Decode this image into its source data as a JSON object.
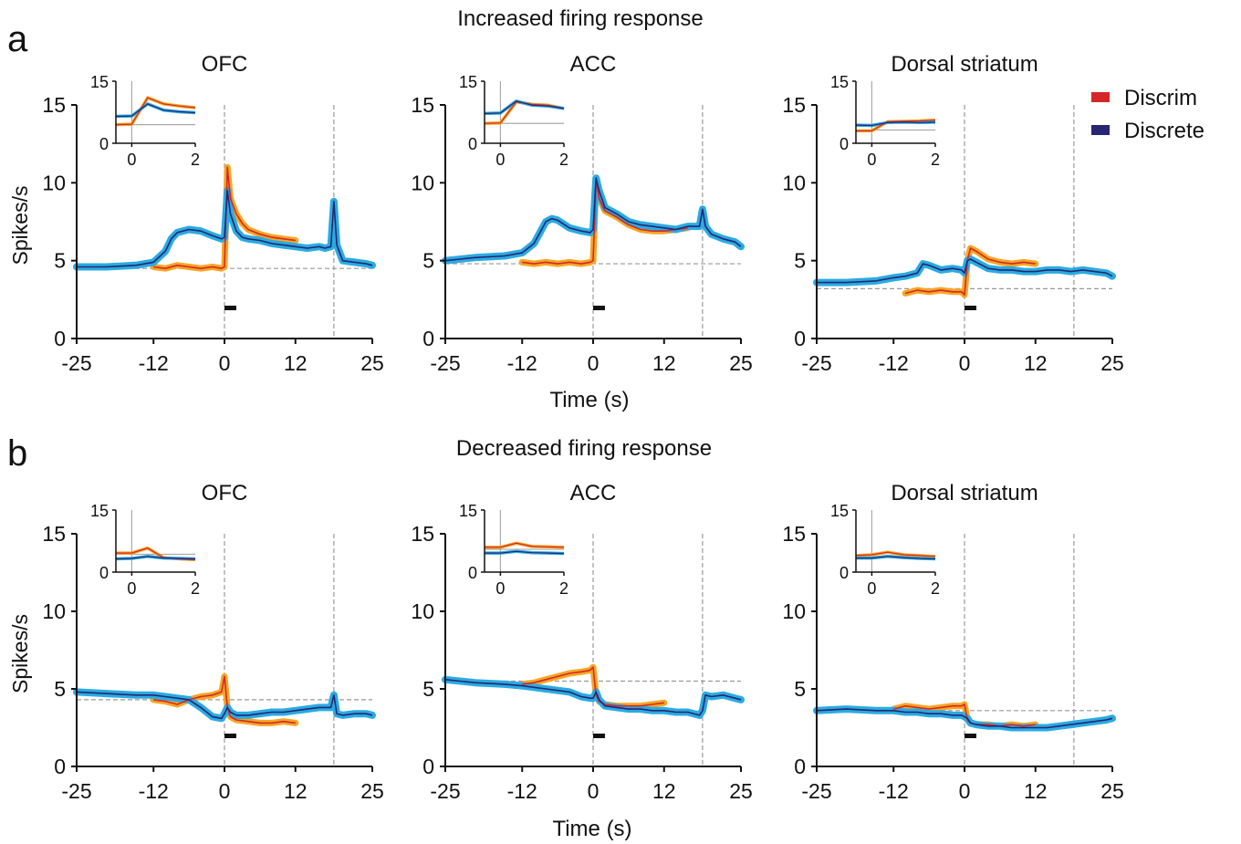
{
  "panels": [
    {
      "letter": "a",
      "heading": "Increased firing response",
      "time_label": "Time (s)"
    },
    {
      "letter": "b",
      "heading": "Decreased firing response",
      "time_label": "Time (s)"
    }
  ],
  "legend": [
    {
      "label": "Discrim",
      "color": "#d62728"
    },
    {
      "label": "Discrete",
      "color": "#262672"
    }
  ],
  "colors": {
    "discrim_line": "#d62728",
    "discrim_band": "#f5a623",
    "discrete_line": "#262672",
    "discrete_band": "#29abe2"
  },
  "chart_data": [
    {
      "type": "line",
      "panel": "a",
      "title": "OFC",
      "ylabel": "Spikes/s",
      "xlim": [
        -25,
        25
      ],
      "ylim": [
        0,
        15
      ],
      "xticks": [
        "-25",
        "-12",
        "0",
        "12",
        "25"
      ],
      "yticks": [
        "0",
        "5",
        "10",
        "15"
      ],
      "baseline": 4.5,
      "vlines": [
        0,
        18.5
      ],
      "bar": [
        0,
        2
      ],
      "series": [
        {
          "name": "Discrim",
          "x": [
            -12,
            -10,
            -8,
            -6,
            -4,
            -2,
            -0.5,
            0,
            0.5,
            1,
            2,
            3,
            4,
            6,
            8,
            10,
            12
          ],
          "y": [
            4.6,
            4.5,
            4.7,
            4.6,
            4.5,
            4.6,
            4.5,
            4.6,
            11,
            9,
            8,
            7.4,
            7,
            6.7,
            6.5,
            6.4,
            6.3
          ]
        },
        {
          "name": "Discrete",
          "x": [
            -25,
            -20,
            -15,
            -12,
            -10,
            -9,
            -8,
            -6,
            -4,
            -2,
            -0.5,
            0,
            0.5,
            1,
            2,
            3,
            4,
            6,
            8,
            10,
            12,
            14,
            16,
            17,
            18,
            18.5,
            19,
            20,
            22,
            24,
            25
          ],
          "y": [
            4.6,
            4.6,
            4.7,
            4.9,
            5.6,
            6.4,
            6.8,
            7,
            6.9,
            6.6,
            6.4,
            6.5,
            9.5,
            8,
            6.9,
            6.5,
            6.4,
            6.3,
            6.1,
            6,
            5.9,
            5.8,
            5.9,
            5.8,
            5.9,
            8.8,
            6,
            5,
            4.9,
            4.8,
            4.7
          ]
        }
      ],
      "inset": {
        "xlim": [
          -0.5,
          2
        ],
        "ylim": [
          0,
          15
        ],
        "xticks": [
          "0",
          "2"
        ],
        "yticks": [
          "0",
          "15"
        ],
        "hline": 4.5,
        "series": [
          {
            "name": "Discrim",
            "x": [
              -0.5,
              0,
              0.5,
              1,
              1.5,
              2
            ],
            "y": [
              4.5,
              4.6,
              11,
              9.5,
              9,
              8.6
            ]
          },
          {
            "name": "Discrete",
            "x": [
              -0.5,
              0,
              0.5,
              1,
              1.5,
              2
            ],
            "y": [
              6.5,
              6.6,
              9.5,
              8,
              7.6,
              7.4
            ]
          }
        ]
      }
    },
    {
      "type": "line",
      "panel": "a",
      "title": "ACC",
      "ylabel": "",
      "xlim": [
        -25,
        25
      ],
      "ylim": [
        0,
        15
      ],
      "xticks": [
        "-25",
        "-12",
        "0",
        "12",
        "25"
      ],
      "yticks": [
        "0",
        "5",
        "10",
        "15"
      ],
      "baseline": 4.8,
      "vlines": [
        0,
        18.5
      ],
      "bar": [
        0,
        2
      ],
      "series": [
        {
          "name": "Discrim",
          "x": [
            -12,
            -10,
            -8,
            -6,
            -4,
            -2,
            -0.5,
            0,
            0.5,
            1,
            2,
            4,
            6,
            8,
            10,
            12,
            14,
            16
          ],
          "y": [
            4.9,
            4.8,
            4.9,
            4.8,
            4.9,
            4.8,
            4.9,
            5,
            10.2,
            9,
            8.2,
            7.8,
            7.3,
            7,
            6.9,
            6.9,
            7,
            7.1
          ]
        },
        {
          "name": "Discrete",
          "x": [
            -25,
            -20,
            -15,
            -12,
            -10,
            -8,
            -7,
            -6,
            -4,
            -2,
            -0.5,
            0,
            0.5,
            1,
            2,
            4,
            6,
            8,
            10,
            12,
            14,
            16,
            18,
            18.5,
            19,
            20,
            22,
            24,
            25
          ],
          "y": [
            5,
            5.2,
            5.3,
            5.5,
            6.1,
            7.5,
            7.7,
            7.6,
            7.1,
            6.9,
            6.8,
            7,
            10.3,
            9.5,
            8.4,
            8,
            7.5,
            7.3,
            7.2,
            7.1,
            7,
            7.2,
            7.2,
            8.3,
            7.2,
            6.7,
            6.4,
            6.2,
            5.9
          ]
        }
      ],
      "inset": {
        "xlim": [
          -0.5,
          2
        ],
        "ylim": [
          0,
          15
        ],
        "xticks": [
          "0",
          "2"
        ],
        "yticks": [
          "0",
          "15"
        ],
        "hline": 4.8,
        "series": [
          {
            "name": "Discrim",
            "x": [
              -0.5,
              0,
              0.5,
              1,
              1.5,
              2
            ],
            "y": [
              4.8,
              4.9,
              10,
              9.4,
              9.2,
              8.4
            ]
          },
          {
            "name": "Discrete",
            "x": [
              -0.5,
              0,
              0.5,
              1,
              1.5,
              2
            ],
            "y": [
              7.2,
              7.3,
              10.2,
              9.2,
              9,
              8.4
            ]
          }
        ]
      }
    },
    {
      "type": "line",
      "panel": "a",
      "title": "Dorsal striatum",
      "ylabel": "",
      "xlim": [
        -25,
        25
      ],
      "ylim": [
        0,
        15
      ],
      "xticks": [
        "-25",
        "-12",
        "0",
        "12",
        "25"
      ],
      "yticks": [
        "0",
        "5",
        "10",
        "15"
      ],
      "baseline": 3.2,
      "vlines": [
        0,
        18.5
      ],
      "bar": [
        0,
        2
      ],
      "series": [
        {
          "name": "Discrim",
          "x": [
            -10,
            -8,
            -6,
            -4,
            -2,
            -0.5,
            0,
            0.5,
            1,
            2,
            4,
            6,
            8,
            10,
            12
          ],
          "y": [
            2.9,
            3.1,
            3,
            3.1,
            3,
            3,
            2.8,
            5,
            5.8,
            5.6,
            5.1,
            4.9,
            4.8,
            4.9,
            4.8
          ]
        },
        {
          "name": "Discrete",
          "x": [
            -25,
            -20,
            -15,
            -12,
            -10,
            -8,
            -7,
            -6,
            -4,
            -2,
            -0.5,
            0,
            0.5,
            1,
            2,
            4,
            6,
            8,
            10,
            12,
            14,
            16,
            18,
            20,
            22,
            24,
            25
          ],
          "y": [
            3.6,
            3.6,
            3.7,
            3.9,
            4,
            4.2,
            4.8,
            4.7,
            4.4,
            4.5,
            4.4,
            4.2,
            5,
            5.1,
            4.9,
            4.5,
            4.4,
            4.4,
            4.3,
            4.3,
            4.4,
            4.4,
            4.3,
            4.4,
            4.3,
            4.2,
            4
          ]
        }
      ],
      "inset": {
        "xlim": [
          -0.5,
          2
        ],
        "ylim": [
          0,
          15
        ],
        "xticks": [
          "0",
          "2"
        ],
        "yticks": [
          "0",
          "15"
        ],
        "hline": 3.2,
        "series": [
          {
            "name": "Discrim",
            "x": [
              -0.5,
              0,
              0.5,
              1,
              1.5,
              2
            ],
            "y": [
              3,
              3,
              5.2,
              5.3,
              5.4,
              5.6
            ]
          },
          {
            "name": "Discrete",
            "x": [
              -0.5,
              0,
              0.5,
              1,
              1.5,
              2
            ],
            "y": [
              4.4,
              4.3,
              5,
              5.1,
              5,
              5.1
            ]
          }
        ]
      }
    },
    {
      "type": "line",
      "panel": "b",
      "title": "OFC",
      "ylabel": "Spikes/s",
      "xlim": [
        -25,
        25
      ],
      "ylim": [
        0,
        15
      ],
      "xticks": [
        "-25",
        "-12",
        "0",
        "12",
        "25"
      ],
      "yticks": [
        "0",
        "5",
        "10",
        "15"
      ],
      "baseline": 4.3,
      "vlines": [
        0,
        18.5
      ],
      "bar": [
        0,
        2
      ],
      "series": [
        {
          "name": "Discrim",
          "x": [
            -12,
            -10,
            -8,
            -6,
            -4,
            -2,
            -0.5,
            0,
            0.5,
            1,
            2,
            4,
            6,
            8,
            10,
            12
          ],
          "y": [
            4.3,
            4.2,
            4,
            4.3,
            4.5,
            4.6,
            4.8,
            5.8,
            3.8,
            3.2,
            3,
            2.9,
            2.8,
            2.8,
            2.9,
            2.8
          ]
        },
        {
          "name": "Discrete",
          "x": [
            -25,
            -20,
            -15,
            -12,
            -10,
            -8,
            -6,
            -4,
            -2,
            -0.5,
            0,
            0.5,
            1,
            2,
            4,
            6,
            8,
            10,
            12,
            14,
            16,
            18,
            18.5,
            19,
            20,
            22,
            24,
            25
          ],
          "y": [
            4.8,
            4.7,
            4.6,
            4.6,
            4.5,
            4.4,
            4.3,
            3.8,
            3.2,
            3.1,
            3.4,
            3.8,
            3.5,
            3.3,
            3.3,
            3.4,
            3.5,
            3.5,
            3.6,
            3.7,
            3.8,
            3.8,
            4.6,
            3.4,
            3.3,
            3.4,
            3.4,
            3.3
          ]
        }
      ],
      "inset": {
        "xlim": [
          -0.5,
          2
        ],
        "ylim": [
          0,
          15
        ],
        "xticks": [
          "0",
          "2"
        ],
        "yticks": [
          "0",
          "15"
        ],
        "hline": 4.3,
        "series": [
          {
            "name": "Discrim",
            "x": [
              -0.5,
              0,
              0.5,
              1,
              1.5,
              2
            ],
            "y": [
              4.6,
              4.6,
              5.8,
              3.5,
              3.2,
              3
            ]
          },
          {
            "name": "Discrete",
            "x": [
              -0.5,
              0,
              0.5,
              1,
              1.5,
              2
            ],
            "y": [
              3.2,
              3.3,
              3.8,
              3.4,
              3.3,
              3.2
            ]
          }
        ]
      }
    },
    {
      "type": "line",
      "panel": "b",
      "title": "ACC",
      "ylabel": "",
      "xlim": [
        -25,
        25
      ],
      "ylim": [
        0,
        15
      ],
      "xticks": [
        "-25",
        "-12",
        "0",
        "12",
        "25"
      ],
      "yticks": [
        "0",
        "5",
        "10",
        "15"
      ],
      "baseline": 5.5,
      "vlines": [
        0,
        18.5
      ],
      "bar": [
        0,
        2
      ],
      "series": [
        {
          "name": "Discrim",
          "x": [
            -12,
            -10,
            -8,
            -6,
            -4,
            -2,
            -0.5,
            0,
            0.5,
            1,
            2,
            4,
            6,
            8,
            10,
            12
          ],
          "y": [
            5.3,
            5.4,
            5.6,
            5.8,
            6,
            6.1,
            6.2,
            6.4,
            4.6,
            4.2,
            4,
            3.9,
            3.9,
            3.9,
            4,
            4.1
          ]
        },
        {
          "name": "Discrete",
          "x": [
            -25,
            -20,
            -15,
            -12,
            -10,
            -8,
            -6,
            -4,
            -2,
            -0.5,
            0,
            0.5,
            1,
            2,
            4,
            6,
            8,
            10,
            12,
            14,
            16,
            18,
            18.5,
            19,
            20,
            22,
            24,
            25
          ],
          "y": [
            5.6,
            5.4,
            5.3,
            5.2,
            5.1,
            5,
            4.9,
            4.8,
            4.5,
            4.4,
            4.4,
            4.8,
            4.3,
            3.9,
            3.8,
            3.7,
            3.7,
            3.6,
            3.6,
            3.5,
            3.5,
            3.3,
            3.6,
            4.6,
            4.5,
            4.6,
            4.4,
            4.3
          ]
        }
      ],
      "inset": {
        "xlim": [
          -0.5,
          2
        ],
        "ylim": [
          0,
          15
        ],
        "xticks": [
          "0",
          "2"
        ],
        "yticks": [
          "0",
          "15"
        ],
        "hline": 5.5,
        "series": [
          {
            "name": "Discrim",
            "x": [
              -0.5,
              0,
              0.5,
              1,
              1.5,
              2
            ],
            "y": [
              6,
              6,
              7,
              6.2,
              6.1,
              6
            ]
          },
          {
            "name": "Discrete",
            "x": [
              -0.5,
              0,
              0.5,
              1,
              1.5,
              2
            ],
            "y": [
              4.6,
              4.6,
              5,
              4.7,
              4.6,
              4.5
            ]
          }
        ]
      }
    },
    {
      "type": "line",
      "panel": "b",
      "title": "Dorsal striatum",
      "ylabel": "",
      "xlim": [
        -25,
        25
      ],
      "ylim": [
        0,
        15
      ],
      "xticks": [
        "-25",
        "-12",
        "0",
        "12",
        "25"
      ],
      "yticks": [
        "0",
        "5",
        "10",
        "15"
      ],
      "baseline": 3.6,
      "vlines": [
        0,
        18.5
      ],
      "bar": [
        0,
        2
      ],
      "series": [
        {
          "name": "Discrim",
          "x": [
            -12,
            -10,
            -8,
            -6,
            -4,
            -2,
            -0.5,
            0,
            0.5,
            1,
            2,
            4,
            6,
            8,
            10,
            12
          ],
          "y": [
            3.7,
            3.9,
            3.8,
            3.7,
            3.8,
            3.9,
            3.9,
            4,
            3,
            2.8,
            2.7,
            2.7,
            2.6,
            2.7,
            2.6,
            2.7
          ]
        },
        {
          "name": "Discrete",
          "x": [
            -25,
            -20,
            -15,
            -12,
            -10,
            -8,
            -6,
            -4,
            -2,
            -0.5,
            0,
            0.5,
            1,
            2,
            4,
            6,
            8,
            10,
            12,
            14,
            16,
            18,
            20,
            22,
            24,
            25
          ],
          "y": [
            3.6,
            3.7,
            3.6,
            3.6,
            3.5,
            3.5,
            3.4,
            3.4,
            3.3,
            3.3,
            3.2,
            3.1,
            2.8,
            2.7,
            2.6,
            2.6,
            2.5,
            2.5,
            2.5,
            2.5,
            2.6,
            2.7,
            2.8,
            2.9,
            3,
            3.1
          ]
        }
      ],
      "inset": {
        "xlim": [
          -0.5,
          2
        ],
        "ylim": [
          0,
          15
        ],
        "xticks": [
          "0",
          "2"
        ],
        "yticks": [
          "0",
          "15"
        ],
        "hline": 3.6,
        "series": [
          {
            "name": "Discrim",
            "x": [
              -0.5,
              0,
              0.5,
              1,
              1.5,
              2
            ],
            "y": [
              4,
              4.2,
              4.8,
              4.2,
              4,
              3.8
            ]
          },
          {
            "name": "Discrete",
            "x": [
              -0.5,
              0,
              0.5,
              1,
              1.5,
              2
            ],
            "y": [
              3.4,
              3.4,
              3.8,
              3.5,
              3.3,
              3.2
            ]
          }
        ]
      }
    }
  ]
}
